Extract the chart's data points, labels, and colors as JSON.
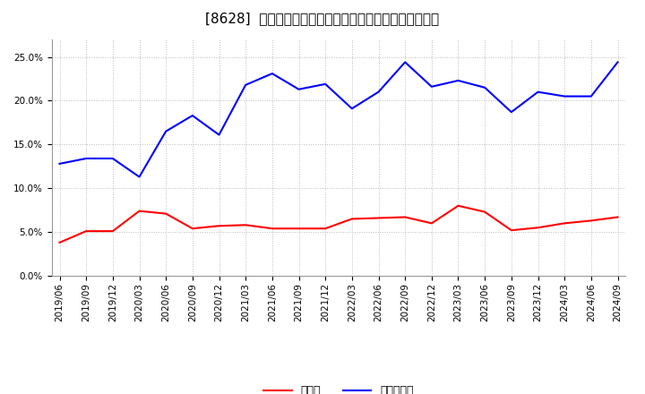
{
  "title": "[8628]  現預金、有利子負債の総資産に対する比率の推移",
  "dates": [
    "2019/06",
    "2019/09",
    "2019/12",
    "2020/03",
    "2020/06",
    "2020/09",
    "2020/12",
    "2021/03",
    "2021/06",
    "2021/09",
    "2021/12",
    "2022/03",
    "2022/06",
    "2022/09",
    "2022/12",
    "2023/03",
    "2023/06",
    "2023/09",
    "2023/12",
    "2024/03",
    "2024/06",
    "2024/09"
  ],
  "cash": [
    0.038,
    0.051,
    0.051,
    0.074,
    0.071,
    0.054,
    0.057,
    0.058,
    0.054,
    0.054,
    0.054,
    0.065,
    0.066,
    0.067,
    0.06,
    0.08,
    0.073,
    0.052,
    0.055,
    0.06,
    0.063,
    0.067
  ],
  "debt": [
    0.128,
    0.134,
    0.134,
    0.113,
    0.165,
    0.183,
    0.161,
    0.218,
    0.231,
    0.213,
    0.219,
    0.191,
    0.21,
    0.244,
    0.216,
    0.223,
    0.215,
    0.187,
    0.21,
    0.205,
    0.205,
    0.244
  ],
  "cash_color": "#ff0000",
  "debt_color": "#0000ff",
  "background_color": "#ffffff",
  "plot_bg_color": "#ffffff",
  "grid_color": "#aaaaaa",
  "cash_label": "現預金",
  "debt_label": "有利子負債",
  "ylim": [
    0.0,
    0.27
  ],
  "yticks": [
    0.0,
    0.05,
    0.1,
    0.15,
    0.2,
    0.25
  ],
  "title_fontsize": 11,
  "tick_fontsize": 7.5,
  "legend_fontsize": 9
}
